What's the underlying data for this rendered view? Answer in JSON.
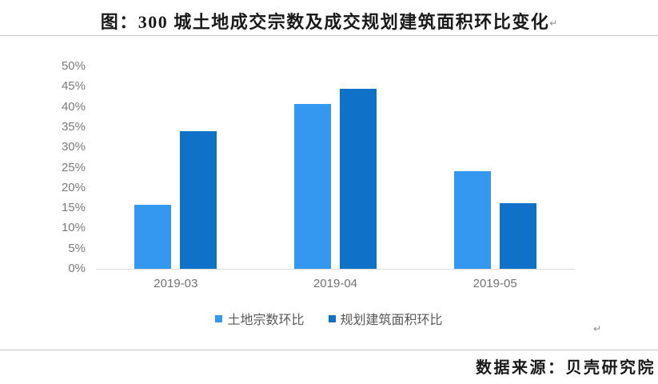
{
  "page": {
    "title": "图：300 城土地成交宗数及成交规划建筑面积环比变化",
    "title_return_mark": "↵",
    "body_return_mark": "↵",
    "source": "数据来源：贝壳研究院"
  },
  "chart_data": {
    "type": "bar",
    "title": "图：300 城土地成交宗数及成交规划建筑面积环比变化",
    "categories": [
      "2019-03",
      "2019-04",
      "2019-05"
    ],
    "series": [
      {
        "name": "土地宗数环比",
        "color": "#3497F0",
        "values": [
          15.8,
          40.8,
          24.2
        ]
      },
      {
        "name": "规划建筑面积环比",
        "color": "#1071C8",
        "values": [
          33.9,
          44.5,
          16.3
        ]
      }
    ],
    "xlabel": "",
    "ylabel": "",
    "ylim": [
      0,
      50
    ],
    "ytick_step": 5,
    "ytick_labels": [
      "0%",
      "5%",
      "10%",
      "15%",
      "20%",
      "25%",
      "30%",
      "35%",
      "40%",
      "45%",
      "50%"
    ],
    "grid": false,
    "legend_position": "bottom"
  },
  "colors": {
    "series_light_blue": "#3497F0",
    "series_dark_blue": "#1071C8",
    "axis_line": "#d9d9d9",
    "tick_text": "#7a7a7a",
    "divider": "#c4c4c4"
  }
}
